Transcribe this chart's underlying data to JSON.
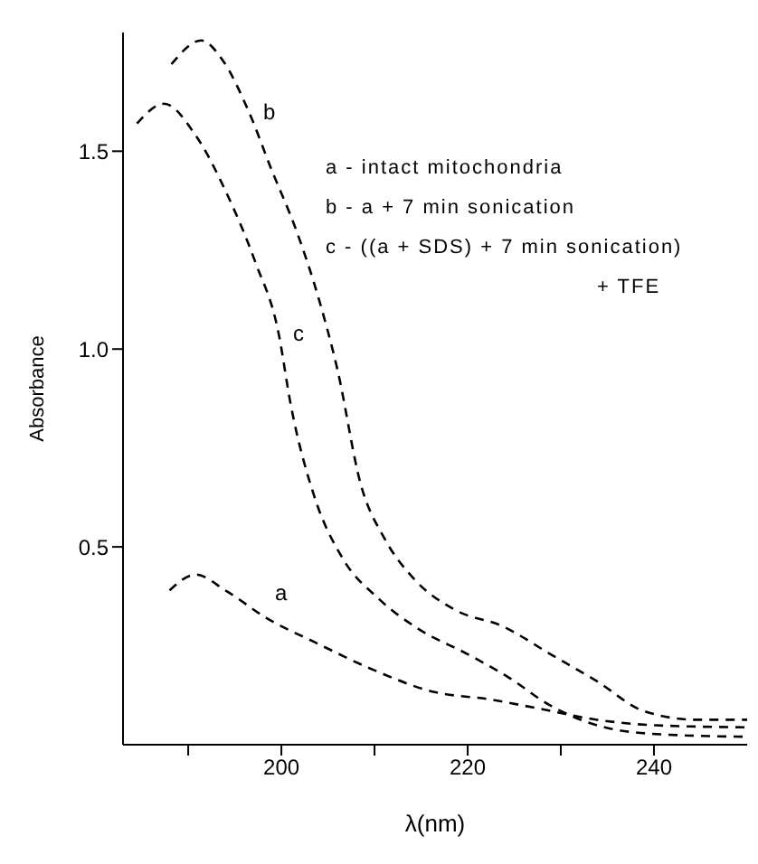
{
  "chart_data": {
    "type": "line",
    "xlabel": "λ(nm)",
    "ylabel": "Absorbance",
    "xlim": [
      183,
      250
    ],
    "ylim": [
      0,
      1.8
    ],
    "xticks": [
      {
        "value": 190,
        "label": null
      },
      200,
      {
        "value": 210,
        "label": null
      },
      220,
      {
        "value": 230,
        "label": null
      },
      240
    ],
    "yticks": [
      {
        "value": 0.5,
        "label": "0.5"
      },
      {
        "value": 1,
        "label": "1.0"
      },
      {
        "value": 1.5,
        "label": "1.5"
      }
    ],
    "marker": "none",
    "line_style": "dashed",
    "series": [
      {
        "color": "#000000",
        "x": [
          188,
          190.8,
          194,
          198.4,
          203.5,
          209.8,
          216.1,
          222.5,
          227.5,
          233.9,
          240.2,
          250
        ],
        "values": [
          0.39,
          0.43,
          0.39,
          0.32,
          0.26,
          0.19,
          0.135,
          0.114,
          0.092,
          0.063,
          0.049,
          0.044
        ]
      },
      {
        "color": "#000000",
        "x": [
          188.2,
          191.4,
          193.7,
          196.5,
          199,
          201.6,
          204.1,
          206,
          208.5,
          211.1,
          214.2,
          218.7,
          223.7,
          228.8,
          233.9,
          238.9,
          244.6,
          250
        ],
        "values": [
          1.72,
          1.78,
          1.73,
          1.6,
          1.45,
          1.3,
          1.12,
          0.95,
          0.66,
          0.52,
          0.42,
          0.34,
          0.3,
          0.23,
          0.16,
          0.085,
          0.063,
          0.063
        ]
      },
      {
        "color": "#000000",
        "x": [
          184.5,
          187.4,
          190.8,
          194,
          197.2,
          199.7,
          201,
          203.5,
          206.6,
          210.4,
          214.9,
          219.9,
          224.4,
          228.8,
          233.9,
          240.2,
          250
        ],
        "values": [
          1.57,
          1.62,
          1.54,
          1.4,
          1.22,
          1.04,
          0.86,
          0.63,
          0.47,
          0.37,
          0.29,
          0.23,
          0.17,
          0.1,
          0.049,
          0.027,
          0.02
        ]
      }
    ],
    "annotations": [
      {
        "text": "a",
        "x": 198.4,
        "y": 0.32
      },
      {
        "text": "b",
        "x": 196.5,
        "y": 1.6
      },
      {
        "text": "c",
        "x": 199.7,
        "y": 1.04
      },
      "a - intact mitochondria",
      "b - a + 7 min sonication",
      "c - ((a + SDS) + 7 min sonication)",
      "+ TFE"
    ]
  }
}
